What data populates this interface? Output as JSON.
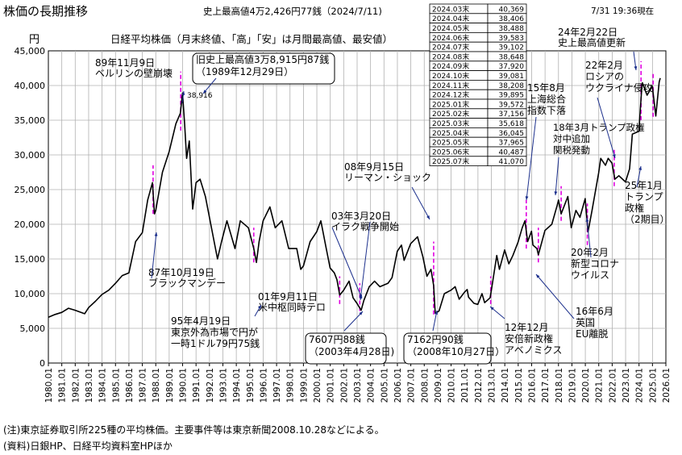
{
  "chart_data": {
    "type": "line",
    "title": "株価の長期推移",
    "record_note": "史上最高値4万2,426円77銭（2024/7/11)",
    "timestamp": "7/31 19:36現在",
    "ylabel": "円",
    "subtitle": "日経平均株価（月末終値、「高」「安」は月間最高値、最安値）",
    "ylim": [
      0,
      45000
    ],
    "yticks": [
      0,
      5000,
      10000,
      15000,
      20000,
      25000,
      30000,
      35000,
      40000,
      45000
    ],
    "ytick_labels": [
      "0",
      "5,000",
      "10,000",
      "15,000",
      "20,000",
      "25,000",
      "30,000",
      "35,000",
      "40,000",
      "45,000"
    ],
    "xlim": [
      1980,
      2026
    ],
    "xtick_labels": [
      "1980.01",
      "1981.01",
      "1982.01",
      "1983.01",
      "1984.01",
      "1985.01",
      "1986.01",
      "1987.01",
      "1988.01",
      "1989.01",
      "1990.01",
      "1991.01",
      "1992.01",
      "1993.01",
      "1994.01",
      "1995.01",
      "1996.01",
      "1997.01",
      "1998.01",
      "1999.01",
      "2000.01",
      "2001.01",
      "2002.01",
      "2003.01",
      "2004.01",
      "2005.01",
      "2006.01",
      "2007.01",
      "2008.01",
      "2009.01",
      "2010.01",
      "2011.01",
      "2012.01",
      "2013.01",
      "2014.01",
      "2015.01",
      "2016.01",
      "2017.01",
      "2018.01",
      "2019.01",
      "2020.01",
      "2021.01",
      "2022.01",
      "2023.01",
      "2024.01",
      "2025.01",
      "2026.01"
    ],
    "grid": true,
    "series": [
      {
        "points": [
          [
            1980.0,
            6600
          ],
          [
            1980.5,
            7000
          ],
          [
            1981.0,
            7300
          ],
          [
            1981.5,
            7900
          ],
          [
            1982.0,
            7600
          ],
          [
            1982.7,
            7100
          ],
          [
            1983.0,
            8000
          ],
          [
            1983.5,
            8900
          ],
          [
            1984.0,
            9900
          ],
          [
            1984.5,
            10500
          ],
          [
            1985.0,
            11500
          ],
          [
            1985.5,
            12600
          ],
          [
            1986.0,
            13000
          ],
          [
            1986.5,
            17500
          ],
          [
            1987.0,
            18800
          ],
          [
            1987.4,
            23500
          ],
          [
            1987.75,
            26000
          ],
          [
            1987.9,
            21500
          ],
          [
            1988.0,
            22000
          ],
          [
            1988.5,
            27500
          ],
          [
            1989.0,
            30500
          ],
          [
            1989.5,
            34500
          ],
          [
            1989.83,
            36000
          ],
          [
            1989.99,
            38916
          ],
          [
            1990.15,
            34500
          ],
          [
            1990.3,
            29500
          ],
          [
            1990.5,
            32000
          ],
          [
            1990.75,
            22200
          ],
          [
            1991.0,
            26000
          ],
          [
            1991.3,
            26500
          ],
          [
            1991.7,
            24000
          ],
          [
            1992.0,
            21000
          ],
          [
            1992.6,
            15000
          ],
          [
            1992.9,
            17500
          ],
          [
            1993.3,
            20500
          ],
          [
            1993.9,
            16500
          ],
          [
            1994.3,
            20500
          ],
          [
            1994.9,
            19500
          ],
          [
            1995.3,
            16500
          ],
          [
            1995.5,
            14500
          ],
          [
            1995.7,
            17500
          ],
          [
            1996.0,
            20500
          ],
          [
            1996.5,
            22500
          ],
          [
            1996.9,
            19500
          ],
          [
            1997.4,
            20500
          ],
          [
            1997.9,
            16500
          ],
          [
            1998.5,
            16500
          ],
          [
            1998.8,
            13500
          ],
          [
            1999.0,
            14000
          ],
          [
            1999.5,
            17500
          ],
          [
            1999.99,
            18934
          ],
          [
            2000.3,
            20500
          ],
          [
            2000.7,
            16500
          ],
          [
            2000.99,
            13700
          ],
          [
            2001.3,
            13000
          ],
          [
            2001.5,
            12000
          ],
          [
            2001.7,
            9800
          ],
          [
            2002.0,
            10500
          ],
          [
            2002.4,
            11800
          ],
          [
            2002.7,
            9400
          ],
          [
            2002.99,
            8600
          ],
          [
            2003.3,
            7607
          ],
          [
            2003.5,
            9000
          ],
          [
            2003.9,
            11000
          ],
          [
            2004.3,
            11800
          ],
          [
            2004.7,
            11000
          ],
          [
            2005.3,
            11500
          ],
          [
            2005.6,
            12300
          ],
          [
            2005.99,
            16100
          ],
          [
            2006.3,
            17000
          ],
          [
            2006.5,
            14800
          ],
          [
            2006.99,
            17200
          ],
          [
            2007.5,
            18200
          ],
          [
            2007.9,
            15300
          ],
          [
            2008.2,
            12500
          ],
          [
            2008.5,
            13500
          ],
          [
            2008.7,
            11200
          ],
          [
            2008.82,
            7162
          ],
          [
            2009.1,
            7500
          ],
          [
            2009.5,
            10000
          ],
          [
            2009.99,
            10500
          ],
          [
            2010.3,
            11000
          ],
          [
            2010.6,
            9200
          ],
          [
            2010.99,
            10200
          ],
          [
            2011.2,
            10600
          ],
          [
            2011.3,
            9500
          ],
          [
            2011.7,
            8600
          ],
          [
            2011.99,
            8450
          ],
          [
            2012.3,
            10000
          ],
          [
            2012.5,
            8700
          ],
          [
            2012.9,
            9400
          ],
          [
            2012.99,
            10400
          ],
          [
            2013.4,
            15500
          ],
          [
            2013.6,
            13500
          ],
          [
            2013.99,
            16300
          ],
          [
            2014.3,
            14300
          ],
          [
            2014.6,
            15500
          ],
          [
            2014.99,
            17450
          ],
          [
            2015.3,
            19500
          ],
          [
            2015.5,
            20500
          ],
          [
            2015.7,
            17500
          ],
          [
            2015.99,
            19000
          ],
          [
            2016.1,
            17000
          ],
          [
            2016.4,
            16500
          ],
          [
            2016.5,
            15600
          ],
          [
            2016.99,
            19100
          ],
          [
            2017.5,
            20000
          ],
          [
            2017.9,
            22700
          ],
          [
            2018.0,
            23500
          ],
          [
            2018.2,
            21500
          ],
          [
            2018.7,
            24000
          ],
          [
            2018.95,
            19500
          ],
          [
            2019.3,
            22000
          ],
          [
            2019.6,
            21000
          ],
          [
            2019.99,
            23700
          ],
          [
            2020.2,
            18900
          ],
          [
            2020.5,
            22000
          ],
          [
            2020.99,
            27400
          ],
          [
            2021.15,
            29500
          ],
          [
            2021.5,
            28500
          ],
          [
            2021.7,
            29500
          ],
          [
            2021.99,
            28800
          ],
          [
            2022.2,
            26500
          ],
          [
            2022.5,
            27000
          ],
          [
            2022.99,
            26100
          ],
          [
            2023.3,
            28000
          ],
          [
            2023.5,
            33000
          ],
          [
            2023.99,
            33400
          ],
          [
            2024.2,
            39500
          ],
          [
            2024.25,
            40400
          ],
          [
            2024.5,
            39100
          ],
          [
            2024.6,
            38600
          ],
          [
            2024.99,
            39900
          ],
          [
            2025.25,
            35600
          ],
          [
            2025.5,
            40500
          ],
          [
            2025.58,
            41070
          ]
        ]
      }
    ],
    "monthly_table": [
      [
        "2024.03末",
        "40,369"
      ],
      [
        "2024.04末",
        "38,406"
      ],
      [
        "2024.05末",
        "38,488"
      ],
      [
        "2024.06末",
        "39,583"
      ],
      [
        "2024.07末",
        "39,102"
      ],
      [
        "2024.08末",
        "38,648"
      ],
      [
        "2024.09末",
        "37,920"
      ],
      [
        "2024.10末",
        "39,081"
      ],
      [
        "2024.11末",
        "38,208"
      ],
      [
        "2024.12末",
        "39,895"
      ],
      [
        "2025.01末",
        "39,572"
      ],
      [
        "2025.02末",
        "37,156"
      ],
      [
        "2025.03末",
        "35,618"
      ],
      [
        "2025.04末",
        "36,045"
      ],
      [
        "2025.05末",
        "37,965"
      ],
      [
        "2025.06末",
        "40,487"
      ],
      [
        "2025.07末",
        "41,070"
      ]
    ],
    "annotations": [
      {
        "text": [
          "89年11月9日",
          "ベルリンの壁崩壊"
        ],
        "x": 1989.86
      },
      {
        "text": [
          "旧史上最高値3万8,915円87銭",
          "（1989年12月29日）"
        ],
        "boxed": true
      },
      {
        "text": [
          "38,916"
        ],
        "x": 1989.99
      },
      {
        "text": [
          "87年10月19日",
          "ブラックマンデー"
        ],
        "x": 1987.8
      },
      {
        "text": [
          "95年4月19日",
          "東京外為市場で円が",
          "一時1ドル79円75銭"
        ],
        "x": 1995.3
      },
      {
        "text": [
          "01年9月11日",
          "米中枢同時テロ"
        ],
        "x": 2001.7
      },
      {
        "text": [
          "03年3月20日",
          "イラク戦争開始"
        ],
        "x": 2003.2
      },
      {
        "text": [
          "7607円88銭",
          "（2003年4月28日)"
        ],
        "boxed": true
      },
      {
        "text": [
          "08年9月15日",
          "リーマン・ショック"
        ],
        "x": 2008.7
      },
      {
        "text": [
          "7162円90銭",
          "（2008年10月27日）"
        ],
        "boxed": true
      },
      {
        "text": [
          "12年12月",
          "安倍新政権",
          "アベノミクス"
        ],
        "x": 2012.95
      },
      {
        "text": [
          "15年8月",
          "上海総合",
          "指数下落"
        ],
        "x": 2015.6
      },
      {
        "text": [
          "16年6月",
          "英国",
          "EU離脱"
        ],
        "x": 2016.5
      },
      {
        "text": [
          "18年3月トランプ政権",
          "対中追加",
          "関税発動"
        ],
        "x": 2018.2
      },
      {
        "text": [
          "20年2月",
          "新型コロナ",
          "ウイルス"
        ],
        "x": 2020.15
      },
      {
        "text": [
          "22年2月",
          "ロシアの",
          "ウクライナ侵攻"
        ],
        "x": 2022.15
      },
      {
        "text": [
          "24年2月22日",
          "史上最高値更新"
        ],
        "x": 2024.15
      },
      {
        "text": [
          "25年1月",
          "トランプ",
          "政権",
          "（2期目）"
        ],
        "x": 2025.05
      }
    ],
    "event_lines": [
      1987.8,
      1989.86,
      1995.3,
      2001.7,
      2003.2,
      2008.7,
      2012.95,
      2015.6,
      2016.5,
      2018.2,
      2020.15,
      2022.15,
      2024.15,
      2025.05
    ]
  },
  "footnotes": {
    "note": "(注)東京証券取引所225種の平均株価。主要事件等は東京新聞2008.10.28などによる。",
    "source": "(資料)日銀HP、日経平均資料室HPほか"
  }
}
